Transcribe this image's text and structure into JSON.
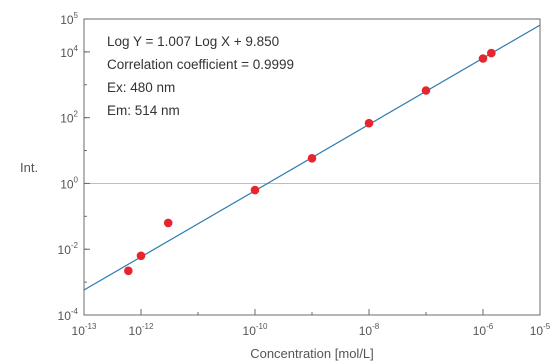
{
  "chart_data": {
    "type": "scatter",
    "xlabel": "Concentration [mol/L]",
    "ylabel": "Int.",
    "xscale": "log",
    "yscale": "log",
    "xlim": [
      1e-13,
      1e-05
    ],
    "ylim": [
      0.0001,
      100000.0
    ],
    "x_ticks": [
      {
        "base": "10",
        "exp": "-13",
        "value": 1e-13
      },
      {
        "base": "10",
        "exp": "-12",
        "value": 1e-12
      },
      {
        "base": "10",
        "exp": "-10",
        "value": 1e-10
      },
      {
        "base": "10",
        "exp": "-8",
        "value": 1e-08
      },
      {
        "base": "10",
        "exp": "-6",
        "value": 1e-06
      },
      {
        "base": "10",
        "exp": "-5",
        "value": 1e-05
      }
    ],
    "y_ticks": [
      {
        "base": "10",
        "exp": "-4",
        "value": 0.0001
      },
      {
        "base": "10",
        "exp": "-2",
        "value": 0.01
      },
      {
        "base": "10",
        "exp": "0",
        "value": 1
      },
      {
        "base": "10",
        "exp": "2",
        "value": 100.0
      },
      {
        "base": "10",
        "exp": "4",
        "value": 10000.0
      },
      {
        "base": "10",
        "exp": "5",
        "value": 100000.0
      }
    ],
    "series": [
      {
        "color": "#e8242c",
        "points": [
          {
            "x": 6e-13,
            "y": 0.0022
          },
          {
            "x": 1e-12,
            "y": 0.0063
          },
          {
            "x": 3e-12,
            "y": 0.063
          },
          {
            "x": 1e-10,
            "y": 0.63
          },
          {
            "x": 1e-09,
            "y": 5.8
          },
          {
            "x": 1e-08,
            "y": 68
          },
          {
            "x": 1e-07,
            "y": 670
          },
          {
            "x": 1e-06,
            "y": 6300
          },
          {
            "x": 1.4e-06,
            "y": 9200
          }
        ]
      }
    ],
    "fit_line": {
      "slope": 1.007,
      "intercept": 9.85,
      "color": "#2a7ab0"
    },
    "reference_line": {
      "y": 1,
      "color": "#bdbdbd"
    },
    "annotations": [
      "Log Y = 1.007 Log X + 9.850",
      "Correlation coefficient = 0.9999",
      "Ex: 480 nm",
      "Em: 514 nm"
    ],
    "grid": false,
    "legend": "none"
  }
}
